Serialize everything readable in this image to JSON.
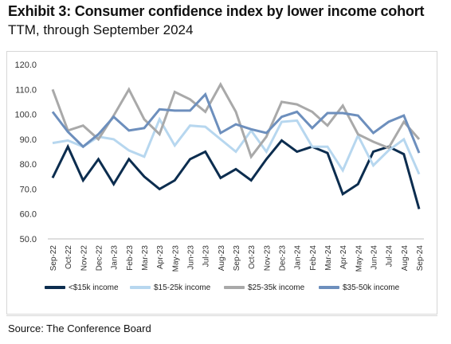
{
  "header": {
    "title": "Exhibit 3: Consumer confidence index by lower income cohort",
    "subtitle": "TTM, through September 2024"
  },
  "footer": {
    "source": "Source: The Conference Board"
  },
  "chart_data": {
    "type": "line",
    "title": "Exhibit 3: Consumer confidence index by lower income cohort",
    "subtitle": "TTM, through September 2024",
    "xlabel": "",
    "ylabel": "",
    "ylim": [
      50,
      120
    ],
    "yticks": [
      "120.0",
      "110.0",
      "100.0",
      "90.0",
      "80.0",
      "70.0",
      "60.0",
      "50.0"
    ],
    "grid": false,
    "legend_position": "bottom",
    "categories": [
      "Sep-22",
      "Oct-22",
      "Nov-22",
      "Dec-22",
      "Jan-23",
      "Feb-23",
      "Mar-23",
      "Apr-23",
      "May-23",
      "Jun-23",
      "Jul-23",
      "Aug-23",
      "Sep-23",
      "Oct-23",
      "Nov-23",
      "Dec-23",
      "Jan-24",
      "Feb-24",
      "Mar-24",
      "Apr-24",
      "May-24",
      "Jun-24",
      "Jul-24",
      "Aug-24",
      "Sep-24"
    ],
    "series": [
      {
        "name": "<$15k income",
        "color": "#0c2d4f",
        "values": [
          74.5,
          87.0,
          73.5,
          82.0,
          72.0,
          82.0,
          75.0,
          70.0,
          73.5,
          82.0,
          85.0,
          74.5,
          78.0,
          73.5,
          82.0,
          89.5,
          85.0,
          87.0,
          84.5,
          68.0,
          72.0,
          85.0,
          87.0,
          84.0,
          62.0
        ]
      },
      {
        "name": "$15-25k income",
        "color": "#b7d7ef",
        "values": [
          88.5,
          89.5,
          87.0,
          91.0,
          90.0,
          85.5,
          83.0,
          98.0,
          87.5,
          95.5,
          95.0,
          90.0,
          85.0,
          93.5,
          85.0,
          97.0,
          97.5,
          87.0,
          87.0,
          77.5,
          91.5,
          79.5,
          85.5,
          90.0,
          76.0
        ]
      },
      {
        "name": "$25-35k income",
        "color": "#a9a9a9",
        "values": [
          110.0,
          93.5,
          95.5,
          90.0,
          99.5,
          110.0,
          98.0,
          92.0,
          109.0,
          106.0,
          101.0,
          112.0,
          101.0,
          83.0,
          91.0,
          105.0,
          104.0,
          101.0,
          95.5,
          103.5,
          92.0,
          89.0,
          86.5,
          97.0,
          90.0
        ]
      },
      {
        "name": "$35-50k income",
        "color": "#6d8fbd",
        "values": [
          101.0,
          93.0,
          87.0,
          92.0,
          99.0,
          93.5,
          94.5,
          102.0,
          101.5,
          101.5,
          108.0,
          92.5,
          96.0,
          94.0,
          92.5,
          99.0,
          101.0,
          94.5,
          100.5,
          100.5,
          99.5,
          92.5,
          97.0,
          99.5,
          84.5
        ]
      }
    ]
  }
}
